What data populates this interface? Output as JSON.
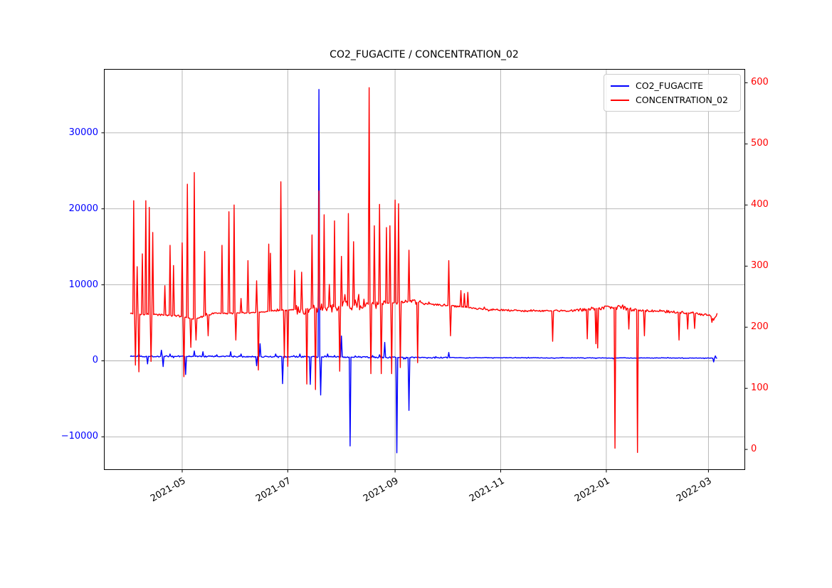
{
  "figure": {
    "title": "CO2_FUGACITE / CONCENTRATION_02",
    "background_color": "#ffffff",
    "grid_color": "#b0b0b0",
    "spine_color": "#000000"
  },
  "legend": {
    "items": [
      {
        "label": "CO2_FUGACITE",
        "color": "#0000ff"
      },
      {
        "label": "CONCENTRATION_02",
        "color": "#ff0000"
      }
    ]
  },
  "chart_data": {
    "type": "line",
    "title": "CO2_FUGACITE / CONCENTRATION_02",
    "grid": true,
    "legend_position": "upper right",
    "x_axis": {
      "kind": "time",
      "start": "2021-03-17",
      "end": "2022-03-22",
      "tick_dates": [
        "2021-05-01",
        "2021-07-01",
        "2021-09-01",
        "2021-11-01",
        "2022-01-01",
        "2022-03-01"
      ],
      "tick_labels": [
        "2021-05",
        "2021-07",
        "2021-09",
        "2021-11",
        "2022-01",
        "2022-03"
      ]
    },
    "left_axis": {
      "series": "CO2_FUGACITE",
      "color": "#0000ff",
      "range": [
        -14313,
        38355
      ],
      "tick_values": [
        -10000,
        0,
        10000,
        20000,
        30000
      ],
      "tick_labels": [
        "−10000",
        "0",
        "10000",
        "20000",
        "30000"
      ]
    },
    "right_axis": {
      "series": "CONCENTRATION_02",
      "color": "#ff0000",
      "range": [
        -33,
        622
      ],
      "tick_values": [
        0,
        100,
        200,
        300,
        400,
        500,
        600
      ],
      "tick_labels": [
        "0",
        "100",
        "200",
        "300",
        "400",
        "500",
        "600"
      ]
    },
    "series": [
      {
        "name": "CO2_FUGACITE",
        "color": "#0000ff",
        "axis": "left",
        "start": "2021-04-01",
        "end": "2022-03-06",
        "baseline": [
          [
            "2021-04-01",
            600
          ],
          [
            "2021-07-01",
            550
          ],
          [
            "2021-09-15",
            420
          ],
          [
            "2022-03-06",
            360
          ]
        ],
        "noise": [
          [
            "2021-04-01",
            "2021-10-01",
            90
          ],
          [
            "2021-10-01",
            "2022-03-06",
            35
          ]
        ],
        "spikes": [
          [
            "2021-04-06",
            1000
          ],
          [
            "2021-04-11",
            -400
          ],
          [
            "2021-04-19",
            1400
          ],
          [
            "2021-04-20",
            -750
          ],
          [
            "2021-04-24",
            900
          ],
          [
            "2021-05-03",
            -1800
          ],
          [
            "2021-05-08",
            1300
          ],
          [
            "2021-05-13",
            1200
          ],
          [
            "2021-05-21",
            800
          ],
          [
            "2021-05-29",
            1200
          ],
          [
            "2021-06-04",
            900
          ],
          [
            "2021-06-13",
            -650
          ],
          [
            "2021-06-15",
            2250
          ],
          [
            "2021-06-24",
            900
          ],
          [
            "2021-06-28",
            -3000
          ],
          [
            "2021-07-08",
            900
          ],
          [
            "2021-07-14",
            -3100
          ],
          [
            "2021-07-17",
            800
          ],
          [
            "2021-07-19",
            35700
          ],
          [
            "2021-07-20",
            -4500
          ],
          [
            "2021-07-24",
            900
          ],
          [
            "2021-07-28",
            700
          ],
          [
            "2021-08-01",
            3270
          ],
          [
            "2021-08-06",
            -11200
          ],
          [
            "2021-08-11",
            600
          ],
          [
            "2021-08-19",
            700
          ],
          [
            "2021-08-23",
            800
          ],
          [
            "2021-08-26",
            2430
          ],
          [
            "2021-09-02",
            -12100
          ],
          [
            "2021-09-09",
            -6520
          ],
          [
            "2021-09-21",
            400
          ],
          [
            "2021-10-02",
            1100
          ],
          [
            "2021-12-26",
            300
          ],
          [
            "2022-01-05",
            250
          ],
          [
            "2022-03-04",
            -150
          ],
          [
            "2022-03-05",
            650
          ]
        ]
      },
      {
        "name": "CONCENTRATION_02",
        "color": "#ff0000",
        "axis": "right",
        "start": "2021-04-01",
        "end": "2022-03-06",
        "baseline": [
          [
            "2021-04-01",
            222
          ],
          [
            "2021-04-28",
            219
          ],
          [
            "2021-05-08",
            213
          ],
          [
            "2021-05-18",
            222
          ],
          [
            "2021-06-10",
            224
          ],
          [
            "2021-06-25",
            227
          ],
          [
            "2021-07-05",
            229
          ],
          [
            "2021-07-25",
            233
          ],
          [
            "2021-08-14",
            237
          ],
          [
            "2021-08-31",
            240
          ],
          [
            "2021-09-08",
            243
          ],
          [
            "2021-09-20",
            238
          ],
          [
            "2021-10-03",
            235
          ],
          [
            "2021-10-20",
            230
          ],
          [
            "2021-11-01",
            228
          ],
          [
            "2021-11-20",
            226
          ],
          [
            "2021-12-12",
            227
          ],
          [
            "2021-12-27",
            231
          ],
          [
            "2022-01-09",
            233
          ],
          [
            "2022-01-16",
            229
          ],
          [
            "2022-01-25",
            227
          ],
          [
            "2022-02-08",
            225
          ],
          [
            "2022-02-20",
            223
          ],
          [
            "2022-03-02",
            219
          ],
          [
            "2022-03-04",
            213
          ],
          [
            "2022-03-06",
            222
          ]
        ],
        "noise": [
          [
            "2021-04-01",
            "2021-07-04",
            1.5
          ],
          [
            "2021-07-04",
            "2021-08-18",
            9
          ],
          [
            "2021-08-18",
            "2021-09-16",
            4
          ],
          [
            "2021-09-16",
            "2021-12-15",
            1.5
          ],
          [
            "2021-12-15",
            "2022-01-20",
            3
          ],
          [
            "2022-01-20",
            "2022-03-06",
            2
          ]
        ],
        "spikes": [
          [
            "2021-04-03",
            407
          ],
          [
            "2021-04-04",
            138
          ],
          [
            "2021-04-05",
            299
          ],
          [
            "2021-04-06",
            127
          ],
          [
            "2021-04-08",
            320
          ],
          [
            "2021-04-10",
            407
          ],
          [
            "2021-04-12",
            396
          ],
          [
            "2021-04-13",
            144
          ],
          [
            "2021-04-14",
            355
          ],
          [
            "2021-04-21",
            268
          ],
          [
            "2021-04-24",
            334
          ],
          [
            "2021-04-26",
            301
          ],
          [
            "2021-05-01",
            338
          ],
          [
            "2021-05-02",
            119
          ],
          [
            "2021-05-04",
            434
          ],
          [
            "2021-05-06",
            167
          ],
          [
            "2021-05-08",
            453
          ],
          [
            "2021-05-09",
            179
          ],
          [
            "2021-05-14",
            324
          ],
          [
            "2021-05-16",
            186
          ],
          [
            "2021-05-24",
            334
          ],
          [
            "2021-05-28",
            389
          ],
          [
            "2021-05-31",
            400
          ],
          [
            "2021-06-01",
            179
          ],
          [
            "2021-06-04",
            247
          ],
          [
            "2021-06-08",
            309
          ],
          [
            "2021-06-13",
            276
          ],
          [
            "2021-06-14",
            130
          ],
          [
            "2021-06-20",
            336
          ],
          [
            "2021-06-21",
            321
          ],
          [
            "2021-06-27",
            438
          ],
          [
            "2021-06-29",
            150
          ],
          [
            "2021-07-01",
            136
          ],
          [
            "2021-07-05",
            293
          ],
          [
            "2021-07-09",
            290
          ],
          [
            "2021-07-12",
            107
          ],
          [
            "2021-07-15",
            351
          ],
          [
            "2021-07-17",
            98
          ],
          [
            "2021-07-19",
            423
          ],
          [
            "2021-07-22",
            384
          ],
          [
            "2021-07-25",
            270
          ],
          [
            "2021-07-28",
            374
          ],
          [
            "2021-07-31",
            128
          ],
          [
            "2021-08-01",
            316
          ],
          [
            "2021-08-05",
            386
          ],
          [
            "2021-08-08",
            340
          ],
          [
            "2021-08-17",
            592
          ],
          [
            "2021-08-18",
            124
          ],
          [
            "2021-08-20",
            366
          ],
          [
            "2021-08-23",
            401
          ],
          [
            "2021-08-24",
            124
          ],
          [
            "2021-08-27",
            363
          ],
          [
            "2021-08-29",
            366
          ],
          [
            "2021-08-30",
            124
          ],
          [
            "2021-09-01",
            408
          ],
          [
            "2021-09-03",
            402
          ],
          [
            "2021-09-04",
            134
          ],
          [
            "2021-09-09",
            326
          ],
          [
            "2021-09-14",
            142
          ],
          [
            "2021-10-02",
            309
          ],
          [
            "2021-10-03",
            186
          ],
          [
            "2021-10-09",
            260
          ],
          [
            "2021-10-11",
            255
          ],
          [
            "2021-10-13",
            257
          ],
          [
            "2021-12-01",
            177
          ],
          [
            "2021-12-21",
            181
          ],
          [
            "2021-12-26",
            173
          ],
          [
            "2021-12-27",
            166
          ],
          [
            "2022-01-06",
            2
          ],
          [
            "2022-01-14",
            197
          ],
          [
            "2022-01-19",
            -5
          ],
          [
            "2022-01-23",
            186
          ],
          [
            "2022-02-12",
            179
          ],
          [
            "2022-02-17",
            197
          ],
          [
            "2022-02-21",
            198
          ],
          [
            "2022-03-03",
            208
          ]
        ]
      }
    ]
  }
}
